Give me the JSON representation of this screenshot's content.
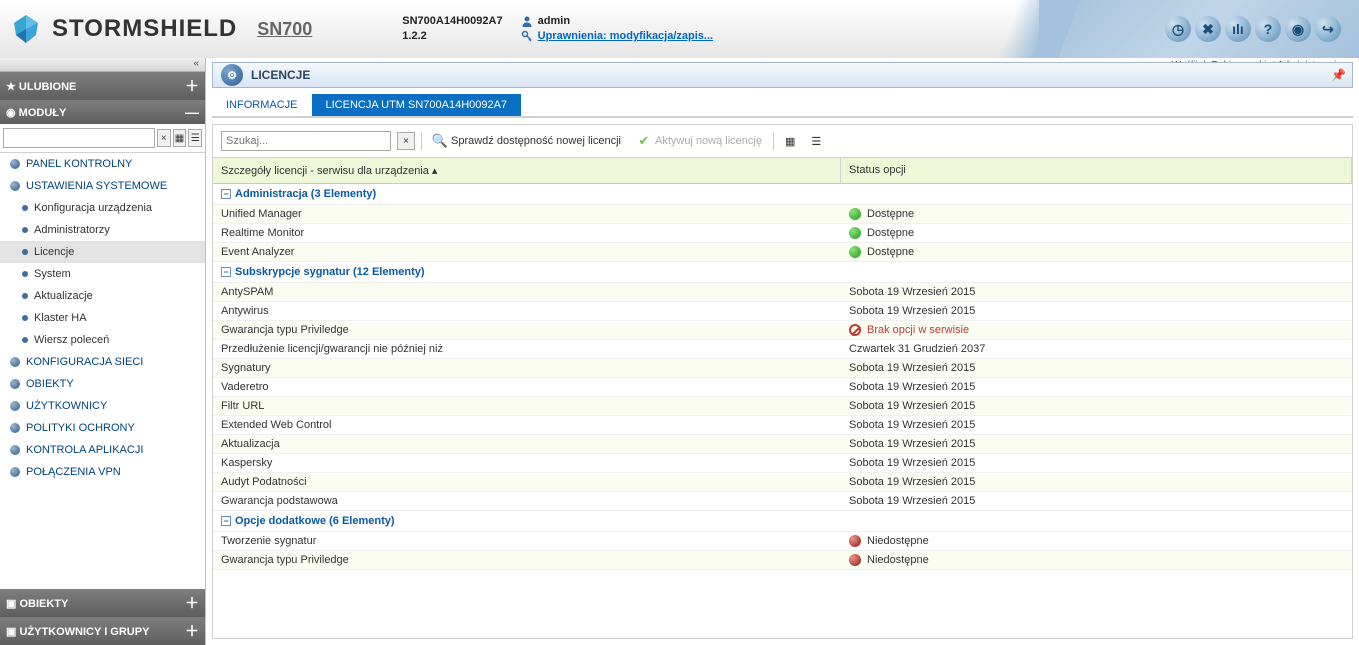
{
  "header": {
    "brand": "STORMSHIELD",
    "model": "SN700",
    "serial": "SN700A14H0092A7",
    "version": "1.2.2",
    "user": "admin",
    "permissions_link": "Uprawnienia: modyfikacja/zapis...",
    "meta_send": "Wyślij",
    "meta_admin_pack": "Pobierz pakiet Administracyjny"
  },
  "sidebar": {
    "section_favorites": "ULUBIONE",
    "section_modules": "MODUŁY",
    "search_placeholder": "",
    "groups": [
      {
        "icon": "dashboard",
        "label": "PANEL KONTROLNY",
        "children": []
      },
      {
        "icon": "gear",
        "label": "USTAWIENIA SYSTEMOWE",
        "children": [
          {
            "label": "Konfiguracja urządzenia"
          },
          {
            "label": "Administratorzy"
          },
          {
            "label": "Licencje",
            "active": true
          },
          {
            "label": "System"
          },
          {
            "label": "Aktualizacje"
          },
          {
            "label": "Klaster HA"
          },
          {
            "label": "Wiersz poleceń"
          }
        ]
      },
      {
        "icon": "net",
        "label": "KONFIGURACJA SIECI",
        "children": []
      },
      {
        "icon": "obj",
        "label": "OBIEKTY",
        "children": []
      },
      {
        "icon": "users",
        "label": "UŻYTKOWNICY",
        "children": []
      },
      {
        "icon": "shield",
        "label": "POLITYKI OCHRONY",
        "children": []
      },
      {
        "icon": "app",
        "label": "KONTROLA APLIKACJI",
        "children": []
      },
      {
        "icon": "vpn",
        "label": "POŁĄCZENIA VPN",
        "children": []
      }
    ],
    "bottom_sections": [
      {
        "label": "OBIEKTY"
      },
      {
        "label": "UŻYTKOWNICY I GRUPY"
      }
    ]
  },
  "page": {
    "title": "LICENCJE",
    "tabs": [
      {
        "label": "INFORMACJE",
        "active": false
      },
      {
        "label": "LICENCJA UTM SN700A14H0092A7",
        "active": true
      }
    ],
    "search_placeholder": "Szukaj...",
    "btn_check": "Sprawdź dostępność nowej licencji",
    "btn_activate": "Aktywuj nową licencję",
    "col_details": "Szczegóły licencji - serwisu dla urządzenia",
    "col_status": "Status opcji",
    "groups": [
      {
        "title": "Administracja (3 Elementy)",
        "rows": [
          {
            "name": "Unified Manager",
            "status": "Dostępne",
            "dot": "green"
          },
          {
            "name": "Realtime Monitor",
            "status": "Dostępne",
            "dot": "green"
          },
          {
            "name": "Event Analyzer",
            "status": "Dostępne",
            "dot": "green"
          }
        ]
      },
      {
        "title": "Subskrypcje sygnatur (12 Elementy)",
        "rows": [
          {
            "name": "AntySPAM",
            "status": "Sobota 19 Wrzesień 2015"
          },
          {
            "name": "Antywirus",
            "status": "Sobota 19 Wrzesień 2015"
          },
          {
            "name": "Gwarancja typu Priviledge",
            "status": "Brak opcji w serwisie",
            "dot": "forbid",
            "err": true
          },
          {
            "name": "Przedłużenie licencji/gwarancji nie później niż",
            "status": "Czwartek 31 Grudzień 2037"
          },
          {
            "name": "Sygnatury",
            "status": "Sobota 19 Wrzesień 2015"
          },
          {
            "name": "Vaderetro",
            "status": "Sobota 19 Wrzesień 2015"
          },
          {
            "name": "Filtr URL",
            "status": "Sobota 19 Wrzesień 2015"
          },
          {
            "name": "Extended Web Control",
            "status": "Sobota 19 Wrzesień 2015"
          },
          {
            "name": "Aktualizacja",
            "status": "Sobota 19 Wrzesień 2015"
          },
          {
            "name": "Kaspersky",
            "status": "Sobota 19 Wrzesień 2015"
          },
          {
            "name": "Audyt Podatności",
            "status": "Sobota 19 Wrzesień 2015"
          },
          {
            "name": "Gwarancja podstawowa",
            "status": "Sobota 19 Wrzesień 2015"
          }
        ]
      },
      {
        "title": "Opcje dodatkowe (6 Elementy)",
        "rows": [
          {
            "name": "Tworzenie sygnatur",
            "status": "Niedostępne",
            "dot": "red"
          },
          {
            "name": "Gwarancja typu Priviledge",
            "status": "Niedostępne",
            "dot": "red"
          }
        ]
      }
    ]
  }
}
